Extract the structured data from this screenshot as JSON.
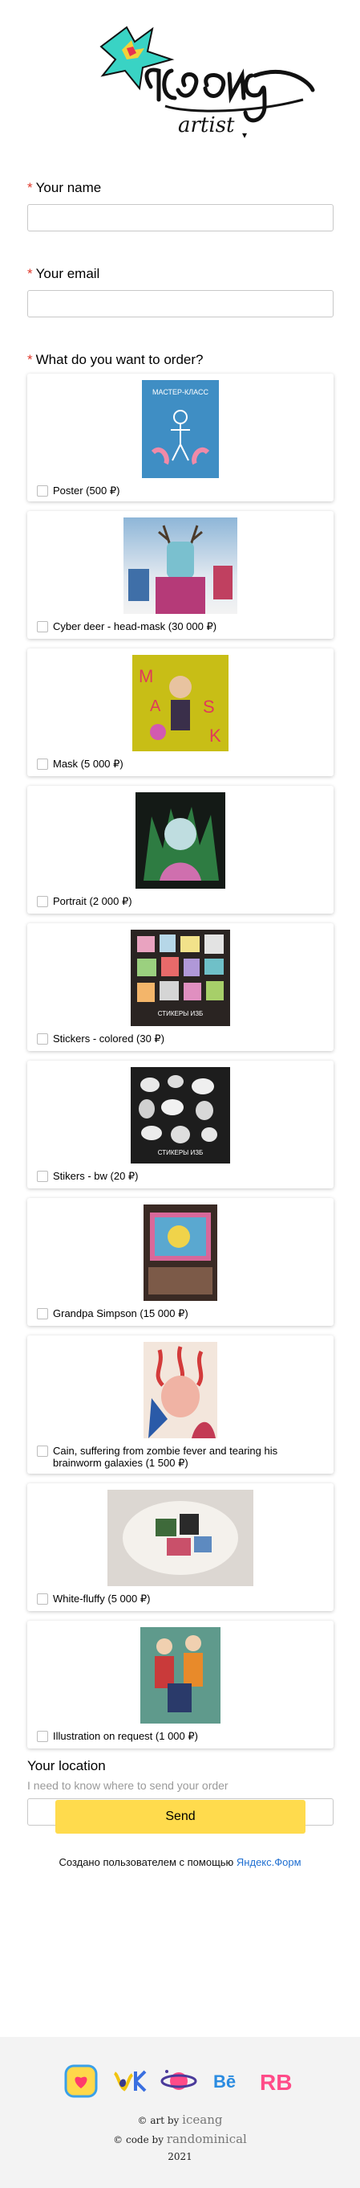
{
  "logo": {
    "brand": "iceang",
    "sub": "artist"
  },
  "form": {
    "q_name": {
      "label": "Your name",
      "required": "*"
    },
    "q_email": {
      "label": "Your email",
      "required": "*"
    },
    "q_order": {
      "label": "What do you want to order?",
      "required": "*"
    },
    "options": [
      {
        "label": "Poster (500 ₽)"
      },
      {
        "label": "Cyber deer - head-mask (30 000 ₽)"
      },
      {
        "label": "Mask (5 000 ₽)"
      },
      {
        "label": "Portrait (2 000 ₽)"
      },
      {
        "label": "Stickers - colored (30 ₽)"
      },
      {
        "label": "Stikers - bw (20 ₽)"
      },
      {
        "label": "Grandpa Simpson (15 000 ₽)"
      },
      {
        "label": "Cain, suffering from zombie fever and tearing his brainworm galaxies (1 500 ₽)"
      },
      {
        "label": "White-fluffy (5 000 ₽)"
      },
      {
        "label": "Illustration on request (1 000 ₽)"
      }
    ],
    "poster_text": "МАСТЕР-КЛАСС",
    "stickers_caption": "СТИКЕРЫ ИЗБ",
    "q_location": {
      "label": "Your location",
      "hint": "I need to know where to send your order"
    },
    "send_label": "Send",
    "credit_text": "Создано пользователем с помощью",
    "credit_link": "Яндекс.Форм"
  },
  "footer": {
    "art_prefix": "© art by",
    "art_name": "iceang",
    "code_prefix": "© code by",
    "code_name": "randominical",
    "year": "2021",
    "icons": [
      "instagram-icon",
      "vk-icon",
      "saturn-icon",
      "behance-icon",
      "rb-icon"
    ]
  }
}
